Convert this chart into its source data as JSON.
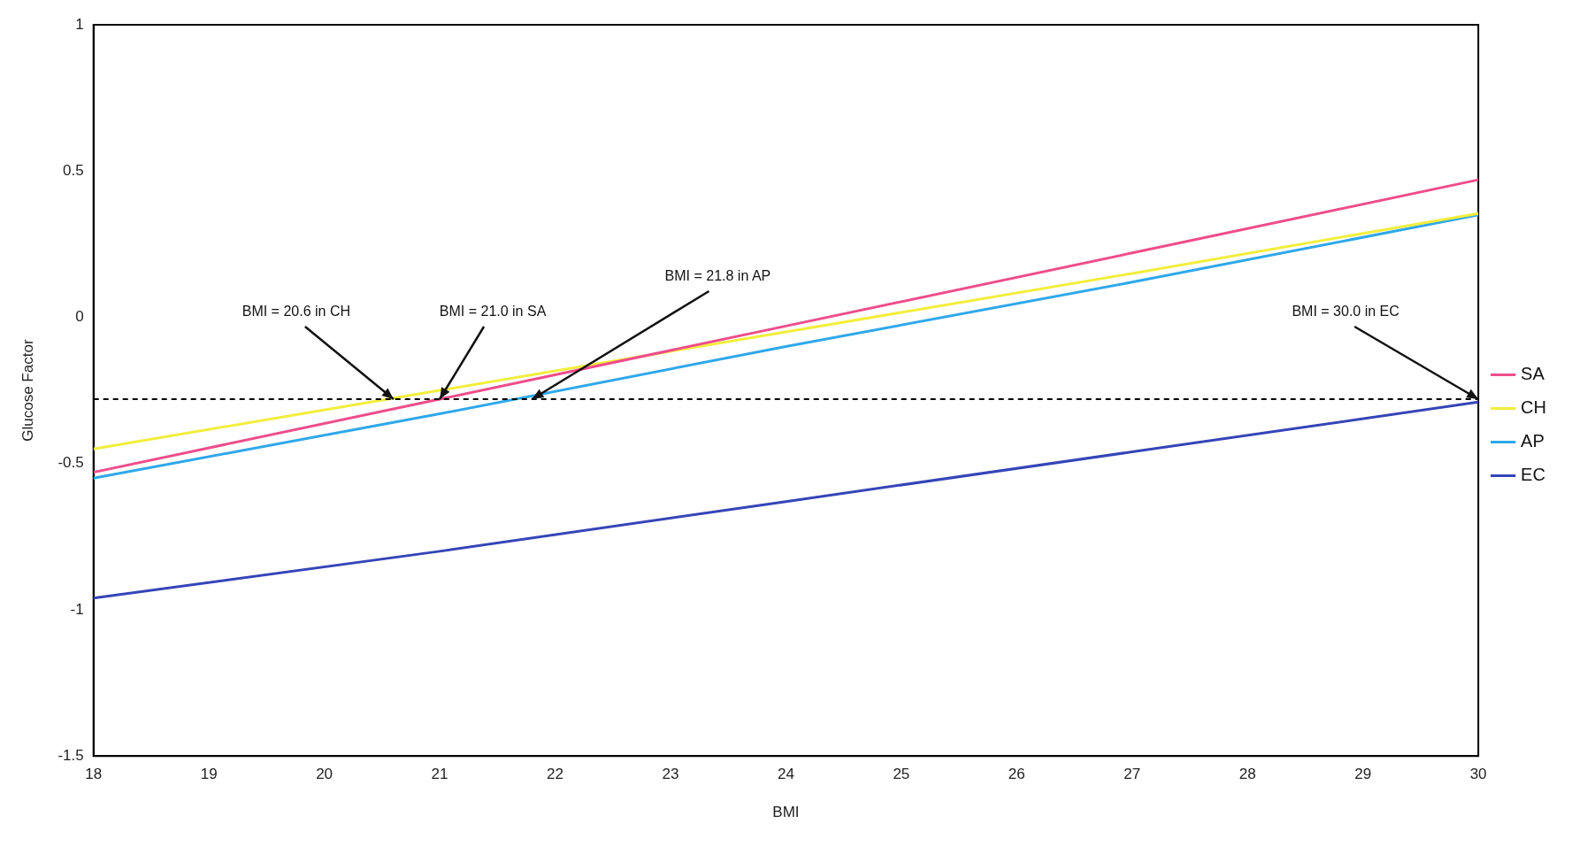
{
  "chart_data": {
    "type": "line",
    "xlabel": "BMI",
    "ylabel": "Glucose Factor",
    "x": [
      18,
      21,
      24,
      27,
      30
    ],
    "series": [
      {
        "name": "SA",
        "color": "#ee4d8c",
        "values": [
          -0.53,
          -0.28,
          -0.03,
          0.22,
          0.47
        ]
      },
      {
        "name": "CH",
        "color": "#f2ee3c",
        "values": [
          -0.45,
          -0.25,
          -0.05,
          0.15,
          0.355
        ]
      },
      {
        "name": "AP",
        "color": "#2fa8ea",
        "values": [
          -0.55,
          -0.33,
          -0.1,
          0.12,
          0.35
        ]
      },
      {
        "name": "EC",
        "color": "#3545b8",
        "values": [
          -0.96,
          -0.8,
          -0.63,
          -0.46,
          -0.29
        ]
      }
    ],
    "xlim": [
      18,
      30
    ],
    "xticks": [
      18,
      19,
      20,
      21,
      22,
      23,
      24,
      25,
      26,
      27,
      28,
      29,
      30
    ],
    "ylim": [
      -1.5,
      1
    ],
    "yticks": [
      -1.5,
      -1,
      -0.5,
      0,
      0.5,
      1
    ],
    "grid": false,
    "legend": "right",
    "marker": "none",
    "line_style": "solid",
    "ref_lines": [
      {
        "axis": "y",
        "value": -0.28,
        "color": "#000000",
        "line_style": "dashed"
      }
    ],
    "annotations": [
      {
        "text": "BMI = 20.6 in CH",
        "x": 20.6,
        "y": -0.28
      },
      {
        "text": "BMI = 21.0 in SA",
        "x": 21.0,
        "y": -0.28
      },
      {
        "text": "BMI = 21.8 in AP",
        "x": 21.8,
        "y": -0.28
      },
      {
        "text": "BMI = 30.0 in EC",
        "x": 30.0,
        "y": -0.28
      }
    ]
  }
}
